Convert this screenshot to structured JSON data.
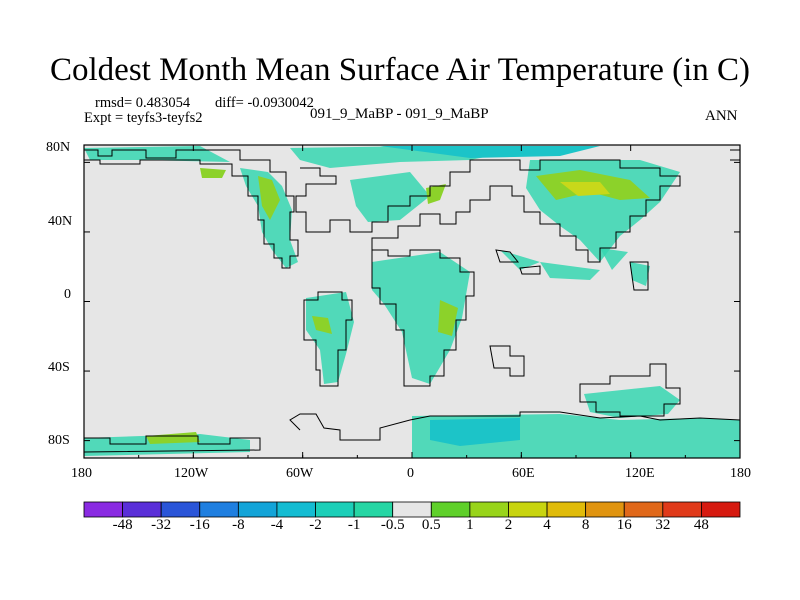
{
  "title": "Coldest Month Mean Surface Air Temperature (in C)",
  "stats": {
    "rmsd": "rmsd= 0.483054",
    "diff": "diff= -0.0930042",
    "expt": "Expt = teyfs3-teyfs2"
  },
  "center_label": "091_9_MaBP - 091_9_MaBP",
  "season": "ANN",
  "y_ticks": [
    "80N",
    "40N",
    "0",
    "40S",
    "80S"
  ],
  "x_ticks": [
    "180",
    "120W",
    "60W",
    "0",
    "60E",
    "120E",
    "180"
  ],
  "colorbar": {
    "labels": [
      "-48",
      "-32",
      "-16",
      "-8",
      "-4",
      "-2",
      "-1",
      "-0.5",
      "0.5",
      "1",
      "2",
      "4",
      "8",
      "16",
      "32",
      "48"
    ],
    "colors": [
      "#8a2be2",
      "#5a2fd8",
      "#2a55d8",
      "#1f7fe0",
      "#13a4d8",
      "#14bcd2",
      "#1ccfb8",
      "#26d6a4",
      "#e6e6e6",
      "#5fd02a",
      "#98d41a",
      "#c8d40f",
      "#e0bb0a",
      "#e09410",
      "#e0681a",
      "#e03a1a",
      "#d61a10"
    ]
  },
  "map_colors": {
    "ocean": "#e6e6e6",
    "cool": "#36d6b0",
    "cool_dark": "#1cc4c8",
    "warm": "#8cd22a",
    "warm_light": "#c8d81a",
    "coast": "#000000"
  }
}
